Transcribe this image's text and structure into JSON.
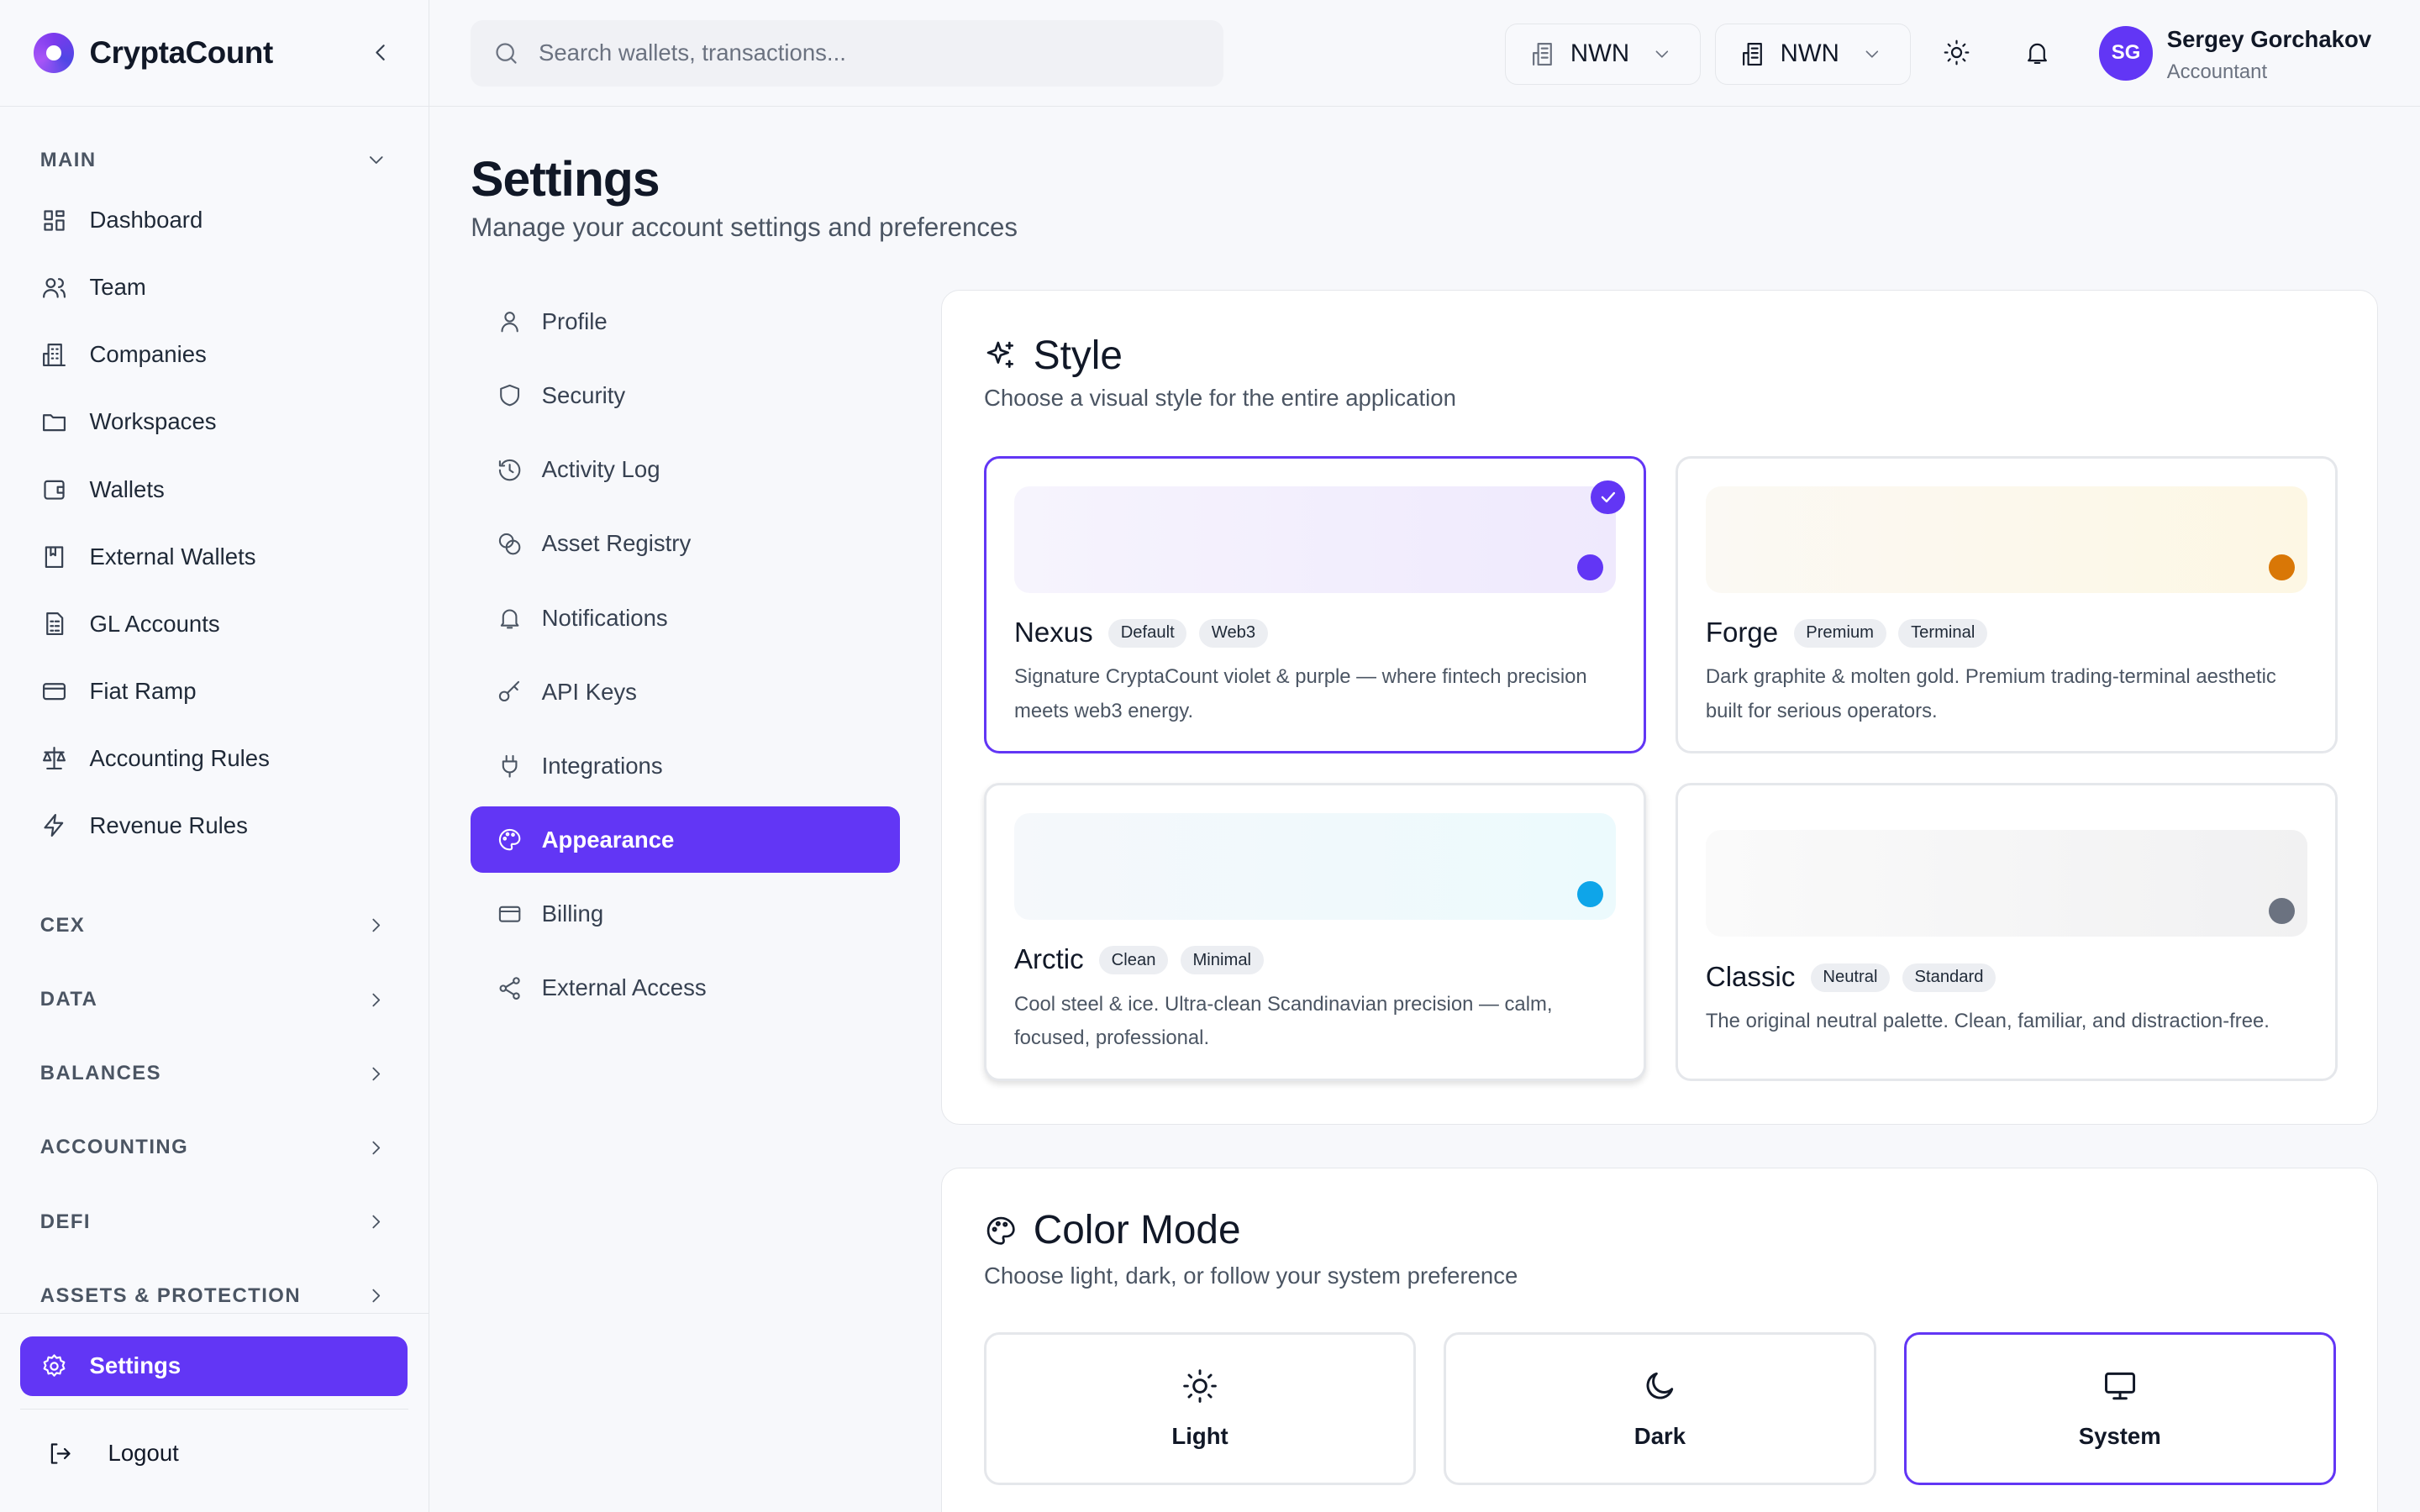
{
  "app": {
    "name": "CryptaCount",
    "accent": "#6236f5"
  },
  "sidebar": {
    "main_label": "MAIN",
    "items": [
      {
        "label": "Dashboard",
        "icon": "dashboard-icon"
      },
      {
        "label": "Team",
        "icon": "users-icon"
      },
      {
        "label": "Companies",
        "icon": "building-icon"
      },
      {
        "label": "Workspaces",
        "icon": "folder-icon"
      },
      {
        "label": "Wallets",
        "icon": "wallet-icon"
      },
      {
        "label": "External Wallets",
        "icon": "book-icon"
      },
      {
        "label": "GL Accounts",
        "icon": "ledger-icon"
      },
      {
        "label": "Fiat Ramp",
        "icon": "credit-card-icon"
      },
      {
        "label": "Accounting Rules",
        "icon": "scale-icon"
      },
      {
        "label": "Revenue Rules",
        "icon": "lightning-icon"
      }
    ],
    "sections": [
      "CEX",
      "DATA",
      "BALANCES",
      "ACCOUNTING",
      "DEFI",
      "ASSETS & PROTECTION"
    ],
    "settings_label": "Settings",
    "logout_label": "Logout"
  },
  "header": {
    "search_placeholder": "Search wallets, transactions...",
    "org1": "NWN",
    "org2": "NWN",
    "user": {
      "initials": "SG",
      "name": "Sergey Gorchakov",
      "role": "Accountant"
    }
  },
  "page": {
    "title": "Settings",
    "subtitle": "Manage your account settings and preferences"
  },
  "settings_nav": [
    {
      "label": "Profile"
    },
    {
      "label": "Security"
    },
    {
      "label": "Activity Log"
    },
    {
      "label": "Asset Registry"
    },
    {
      "label": "Notifications"
    },
    {
      "label": "API Keys"
    },
    {
      "label": "Integrations"
    },
    {
      "label": "Appearance",
      "active": true
    },
    {
      "label": "Billing"
    },
    {
      "label": "External Access"
    }
  ],
  "style": {
    "title": "Style",
    "subtitle": "Choose a visual style for the entire application",
    "options": [
      {
        "name": "Nexus",
        "tags": [
          "Default",
          "Web3"
        ],
        "desc": "Signature CryptaCount violet & purple — where fintech precision meets web3 energy.",
        "color": "#6236f5",
        "selected": true
      },
      {
        "name": "Forge",
        "tags": [
          "Premium",
          "Terminal"
        ],
        "desc": "Dark graphite & molten gold. Premium trading-terminal aesthetic built for serious operators.",
        "color": "#d97706"
      },
      {
        "name": "Arctic",
        "tags": [
          "Clean",
          "Minimal"
        ],
        "desc": "Cool steel & ice. Ultra-clean Scandinavian precision — calm, focused, professional.",
        "color": "#0ea5e9"
      },
      {
        "name": "Classic",
        "tags": [
          "Neutral",
          "Standard"
        ],
        "desc": "The original neutral palette. Clean, familiar, and distraction-free.",
        "color": "#6b7280"
      }
    ]
  },
  "color_mode": {
    "title": "Color Mode",
    "subtitle": "Choose light, dark, or follow your system preference",
    "options": [
      {
        "label": "Light"
      },
      {
        "label": "Dark"
      },
      {
        "label": "System",
        "selected": true
      }
    ]
  }
}
